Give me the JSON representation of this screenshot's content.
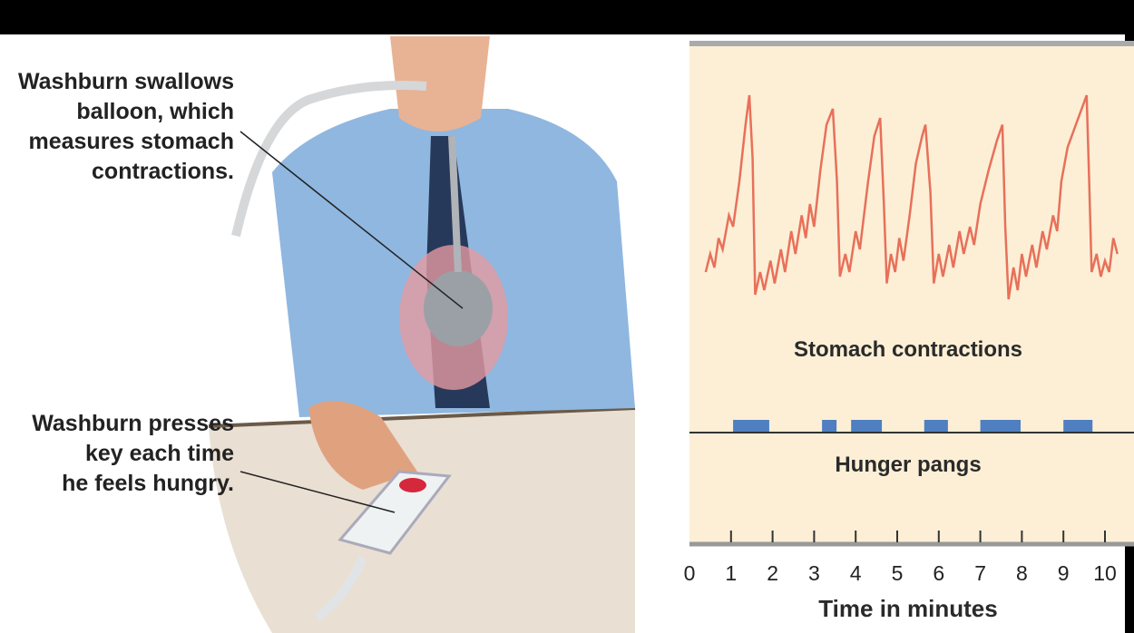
{
  "annotations": [
    {
      "lines": [
        "Washburn swallows",
        "balloon, which",
        "measures stomach",
        "contractions."
      ]
    },
    {
      "lines": [
        "Washburn presses",
        "key each time",
        "he feels hungry."
      ]
    }
  ],
  "chart_data": {
    "type": "timeline",
    "x_label": "Time in minutes",
    "xlim": [
      0,
      10.4
    ],
    "xticks": [
      0,
      1,
      2,
      3,
      4,
      5,
      6,
      7,
      8,
      9,
      10
    ],
    "ylim": [
      0,
      100
    ],
    "series": [
      {
        "name": "Stomach contractions",
        "color": "#e8705a",
        "x": [
          0.39,
          0.5,
          0.6,
          0.7,
          0.8,
          0.95,
          1.05,
          1.2,
          1.35,
          1.44,
          1.52,
          1.58,
          1.7,
          1.8,
          1.95,
          2.05,
          2.2,
          2.3,
          2.45,
          2.55,
          2.7,
          2.8,
          2.9,
          3.0,
          3.15,
          3.3,
          3.45,
          3.55,
          3.62,
          3.75,
          3.85,
          4.0,
          4.1,
          4.3,
          4.45,
          4.59,
          4.68,
          4.75,
          4.85,
          4.95,
          5.05,
          5.15,
          5.3,
          5.45,
          5.6,
          5.68,
          5.8,
          5.88,
          6.0,
          6.1,
          6.25,
          6.35,
          6.5,
          6.6,
          6.75,
          6.85,
          7.0,
          7.2,
          7.4,
          7.53,
          7.6,
          7.68,
          7.8,
          7.9,
          8.0,
          8.1,
          8.25,
          8.35,
          8.5,
          8.6,
          8.75,
          8.85,
          8.95,
          9.1,
          9.3,
          9.5,
          9.56,
          9.62,
          9.68,
          9.8,
          9.9,
          10.0,
          10.1,
          10.2,
          10.3
        ],
        "values": [
          20,
          28,
          22,
          35,
          30,
          45,
          40,
          60,
          85,
          98,
          70,
          10,
          20,
          12,
          25,
          15,
          30,
          20,
          38,
          28,
          45,
          35,
          50,
          40,
          65,
          85,
          92,
          60,
          18,
          28,
          20,
          38,
          30,
          60,
          80,
          88,
          50,
          15,
          28,
          20,
          35,
          25,
          45,
          68,
          80,
          85,
          55,
          15,
          28,
          18,
          32,
          22,
          38,
          28,
          40,
          32,
          50,
          65,
          78,
          85,
          40,
          8,
          22,
          12,
          28,
          18,
          32,
          22,
          38,
          30,
          45,
          38,
          60,
          75,
          85,
          95,
          98,
          60,
          20,
          28,
          18,
          25,
          20,
          35,
          28
        ]
      },
      {
        "name": "Hunger pangs",
        "color": "#4f7fc0",
        "intervals": [
          [
            1.05,
            1.92
          ],
          [
            3.19,
            3.54
          ],
          [
            3.89,
            4.63
          ],
          [
            5.65,
            6.22
          ],
          [
            7.0,
            7.97
          ],
          [
            9.0,
            9.7
          ]
        ]
      }
    ]
  }
}
